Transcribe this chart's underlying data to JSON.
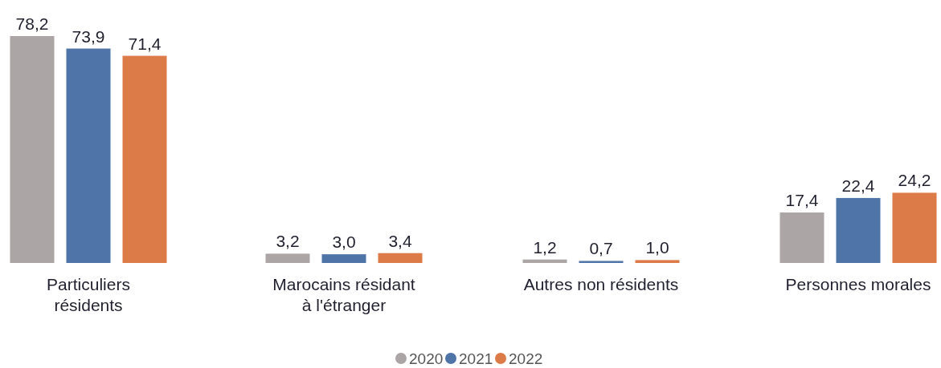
{
  "chart_data": {
    "type": "bar",
    "categories": [
      "Particuliers\nrésidents",
      "Marocains résidant\nà l'étranger",
      "Autres non résidents",
      "Personnes morales"
    ],
    "series": [
      {
        "name": "2020",
        "color": "#aba5a5",
        "values": [
          78.2,
          3.2,
          1.2,
          17.4
        ],
        "value_labels": [
          "78,2",
          "3,2",
          "1,2",
          "17,4"
        ]
      },
      {
        "name": "2021",
        "color": "#4f74a8",
        "values": [
          73.9,
          3.0,
          0.7,
          22.4
        ],
        "value_labels": [
          "73,9",
          "3,0",
          "0,7",
          "22,4"
        ]
      },
      {
        "name": "2022",
        "color": "#dc7a48",
        "values": [
          71.4,
          3.4,
          1.0,
          24.2
        ],
        "value_labels": [
          "71,4",
          "3,4",
          "1,0",
          "24,2"
        ]
      }
    ],
    "legend": "bottom"
  }
}
